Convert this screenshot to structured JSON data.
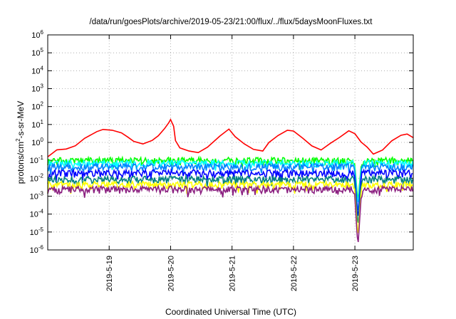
{
  "chart_data": {
    "type": "line",
    "title": "/data/run/goesPlots/archive/2019-05-23/21:00/flux/../flux/5daysMoonFluxes.txt",
    "xlabel": "Coordinated Universal Time (UTC)",
    "ylabel_main": "protons/cm",
    "ylabel_sup": "2",
    "ylabel_tail": "-s-sr-MeV",
    "y_scale": "log",
    "ylim_exp": [
      -6,
      6
    ],
    "y_tick_exponents": [
      6,
      5,
      4,
      3,
      2,
      1,
      0,
      -1,
      -2,
      -3,
      -4,
      -5,
      -6
    ],
    "y_tick_base": "10",
    "xlim_days": [
      18.0,
      23.95
    ],
    "x_ticks": [
      {
        "day": 19,
        "label": "2019-5-19"
      },
      {
        "day": 20,
        "label": "2019-5-20"
      },
      {
        "day": 21,
        "label": "2019-5-21"
      },
      {
        "day": 22,
        "label": "2019-5-22"
      },
      {
        "day": 23,
        "label": "2019-5-23"
      }
    ],
    "grid": true,
    "legend": "none",
    "series": [
      {
        "color": "#ff0000",
        "points": [
          [
            18.0,
            0.18
          ],
          [
            18.15,
            0.35
          ],
          [
            18.3,
            0.45
          ],
          [
            18.45,
            0.7
          ],
          [
            18.6,
            1.6
          ],
          [
            18.8,
            4
          ],
          [
            18.9,
            5.5
          ],
          [
            19.05,
            4.5
          ],
          [
            19.2,
            3.2
          ],
          [
            19.3,
            2
          ],
          [
            19.4,
            1.1
          ],
          [
            19.55,
            0.8
          ],
          [
            19.7,
            1.2
          ],
          [
            19.8,
            2.5
          ],
          [
            19.9,
            6
          ],
          [
            19.97,
            12
          ],
          [
            20.0,
            18
          ],
          [
            20.05,
            9
          ],
          [
            20.08,
            1.2
          ],
          [
            20.15,
            0.5
          ],
          [
            20.3,
            0.3
          ],
          [
            20.45,
            0.25
          ],
          [
            20.6,
            0.6
          ],
          [
            20.8,
            2.2
          ],
          [
            20.95,
            5
          ],
          [
            21.05,
            2
          ],
          [
            21.2,
            0.8
          ],
          [
            21.35,
            0.4
          ],
          [
            21.5,
            0.3
          ],
          [
            21.6,
            0.9
          ],
          [
            21.75,
            2.5
          ],
          [
            21.9,
            5
          ],
          [
            22.0,
            4
          ],
          [
            22.15,
            1.8
          ],
          [
            22.3,
            0.7
          ],
          [
            22.45,
            0.4
          ],
          [
            22.6,
            0.9
          ],
          [
            22.75,
            2
          ],
          [
            22.9,
            4
          ],
          [
            23.0,
            3
          ],
          [
            23.1,
            1
          ],
          [
            23.2,
            0.5
          ],
          [
            23.3,
            0.25
          ],
          [
            23.45,
            0.4
          ],
          [
            23.6,
            1.2
          ],
          [
            23.75,
            2.5
          ],
          [
            23.85,
            3
          ],
          [
            23.95,
            2
          ]
        ]
      },
      {
        "color": "#00ff00",
        "base": 0.1,
        "dip_day": 23.05,
        "dip_value": 0.0005
      },
      {
        "color": "#00ffff",
        "base": 0.07,
        "dip_day": 23.05,
        "dip_value": 0.0003
      },
      {
        "color": "#0080ff",
        "base": 0.045,
        "dip_day": 23.05,
        "dip_value": 0.0001
      },
      {
        "color": "#0000ff",
        "base": 0.02,
        "dip_day": 23.05,
        "dip_value": 5e-05
      },
      {
        "color": "#008080",
        "base": 0.009,
        "dip_day": 23.05,
        "dip_value": 2e-05
      },
      {
        "color": "#ffff00",
        "base": 0.0045,
        "dip_day": 23.05,
        "dip_value": 5e-06
      },
      {
        "color": "#8b2080",
        "base": 0.0025,
        "dip_day": 23.05,
        "dip_value": 1.5e-06
      }
    ]
  }
}
